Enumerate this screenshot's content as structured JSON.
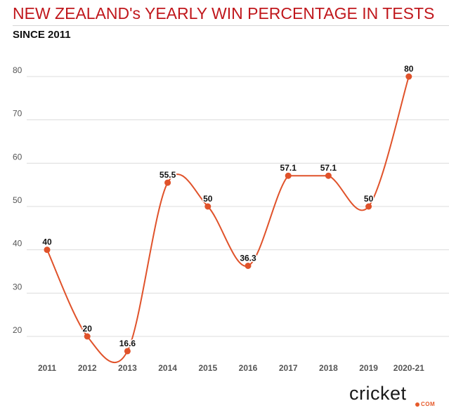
{
  "header": {
    "title": "NEW ZEALAND's YEARLY WIN PERCENTAGE IN TESTS",
    "subtitle": "SINCE 2011"
  },
  "logo": {
    "name": "cricket",
    "suffix": "COM"
  },
  "colors": {
    "title": "#c0171c",
    "line": "#e0522a",
    "grid": "#dcdcdc",
    "axis_text": "#555555"
  },
  "chart_data": {
    "type": "line",
    "title": "NEW ZEALAND's YEARLY WIN PERCENTAGE IN TESTS",
    "subtitle": "SINCE 2011",
    "categories": [
      "2011",
      "2012",
      "2013",
      "2014",
      "2015",
      "2016",
      "2017",
      "2018",
      "2019",
      "2020-21"
    ],
    "values": [
      40,
      20,
      16.6,
      55.5,
      50,
      36.3,
      57.1,
      57.1,
      50,
      80
    ],
    "labels": [
      "40",
      "20",
      "16.6",
      "55.5",
      "50",
      "36.3",
      "57.1",
      "57.1",
      "50",
      "80"
    ],
    "y_ticks": [
      20,
      30,
      40,
      50,
      60,
      70,
      80
    ],
    "ylim": [
      13,
      86
    ],
    "grid": true,
    "xlabel": "",
    "ylabel": ""
  }
}
